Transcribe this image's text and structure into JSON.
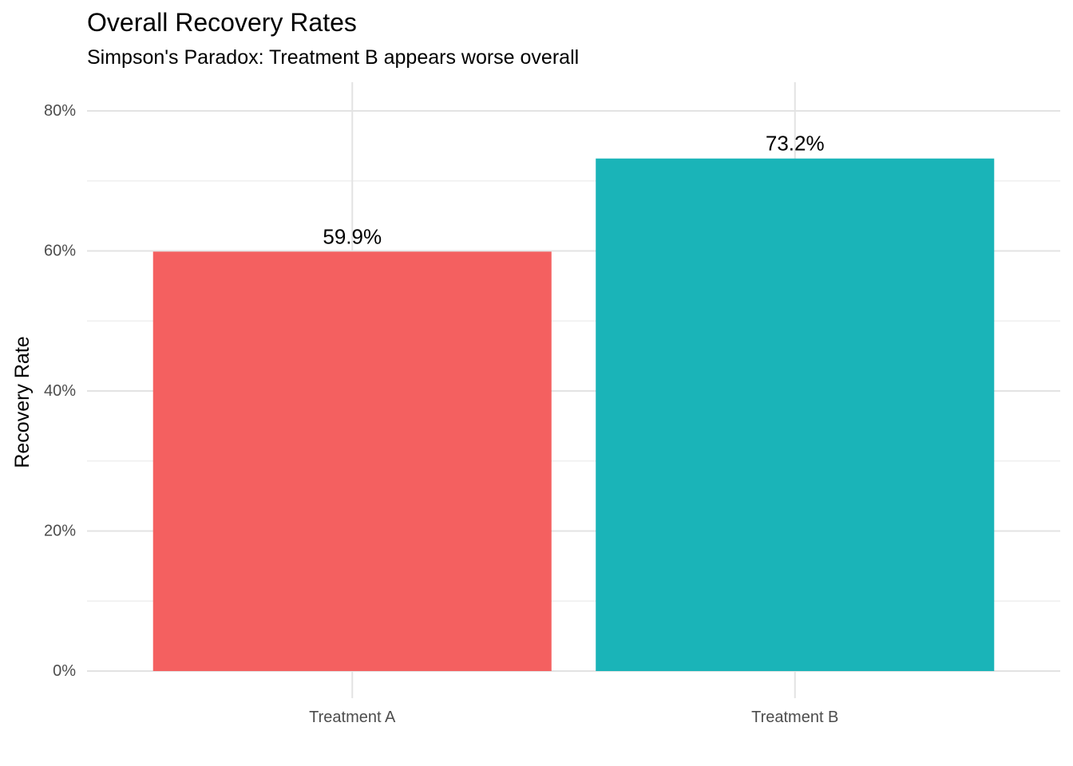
{
  "chart_data": {
    "type": "bar",
    "title": "Overall Recovery Rates",
    "subtitle": "Simpson's Paradox: Treatment B appears worse overall",
    "xlabel": "",
    "ylabel": "Recovery Rate",
    "categories": [
      "Treatment A",
      "Treatment B"
    ],
    "values": [
      0.599,
      0.732
    ],
    "data_labels": [
      "59.9%",
      "73.2%"
    ],
    "colors": [
      "#F46060",
      "#1AB4B8"
    ],
    "ylim": [
      0,
      0.8
    ],
    "y_ticks": [
      0,
      0.2,
      0.4,
      0.6,
      0.8
    ],
    "y_tick_labels": [
      "0%",
      "20%",
      "40%",
      "60%",
      "80%"
    ],
    "grid": true,
    "legend": "none"
  }
}
